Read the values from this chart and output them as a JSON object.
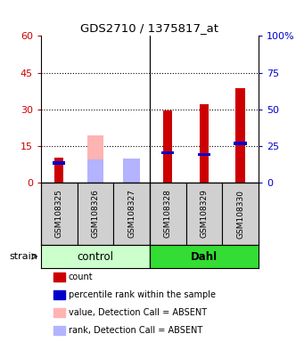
{
  "title": "GDS2710 / 1375817_at",
  "samples": [
    "GSM108325",
    "GSM108326",
    "GSM108327",
    "GSM108328",
    "GSM108329",
    "GSM108330"
  ],
  "red_values": [
    10.5,
    null,
    null,
    29.5,
    32.0,
    38.5
  ],
  "blue_values": [
    13.5,
    null,
    null,
    20.5,
    19.5,
    27.0
  ],
  "pink_values": [
    null,
    19.5,
    null,
    null,
    null,
    null
  ],
  "lightblue_values": [
    null,
    16.0,
    16.5,
    null,
    null,
    null
  ],
  "left_yticks": [
    0,
    15,
    30,
    45,
    60
  ],
  "right_yticks": [
    0,
    25,
    50,
    75,
    100
  ],
  "left_ylim": [
    0,
    60
  ],
  "right_ylim": [
    0,
    100
  ],
  "left_ylabel_color": "#cc0000",
  "right_ylabel_color": "#0000cc",
  "red_color": "#cc0000",
  "blue_color": "#0000cc",
  "pink_color": "#ffb3b3",
  "lightblue_color": "#b3b3ff",
  "ctrl_color_light": "#ccffcc",
  "dahl_color_bright": "#33dd33",
  "legend_items": [
    "count",
    "percentile rank within the sample",
    "value, Detection Call = ABSENT",
    "rank, Detection Call = ABSENT"
  ],
  "legend_colors": [
    "#cc0000",
    "#0000cc",
    "#ffb3b3",
    "#b3b3ff"
  ]
}
